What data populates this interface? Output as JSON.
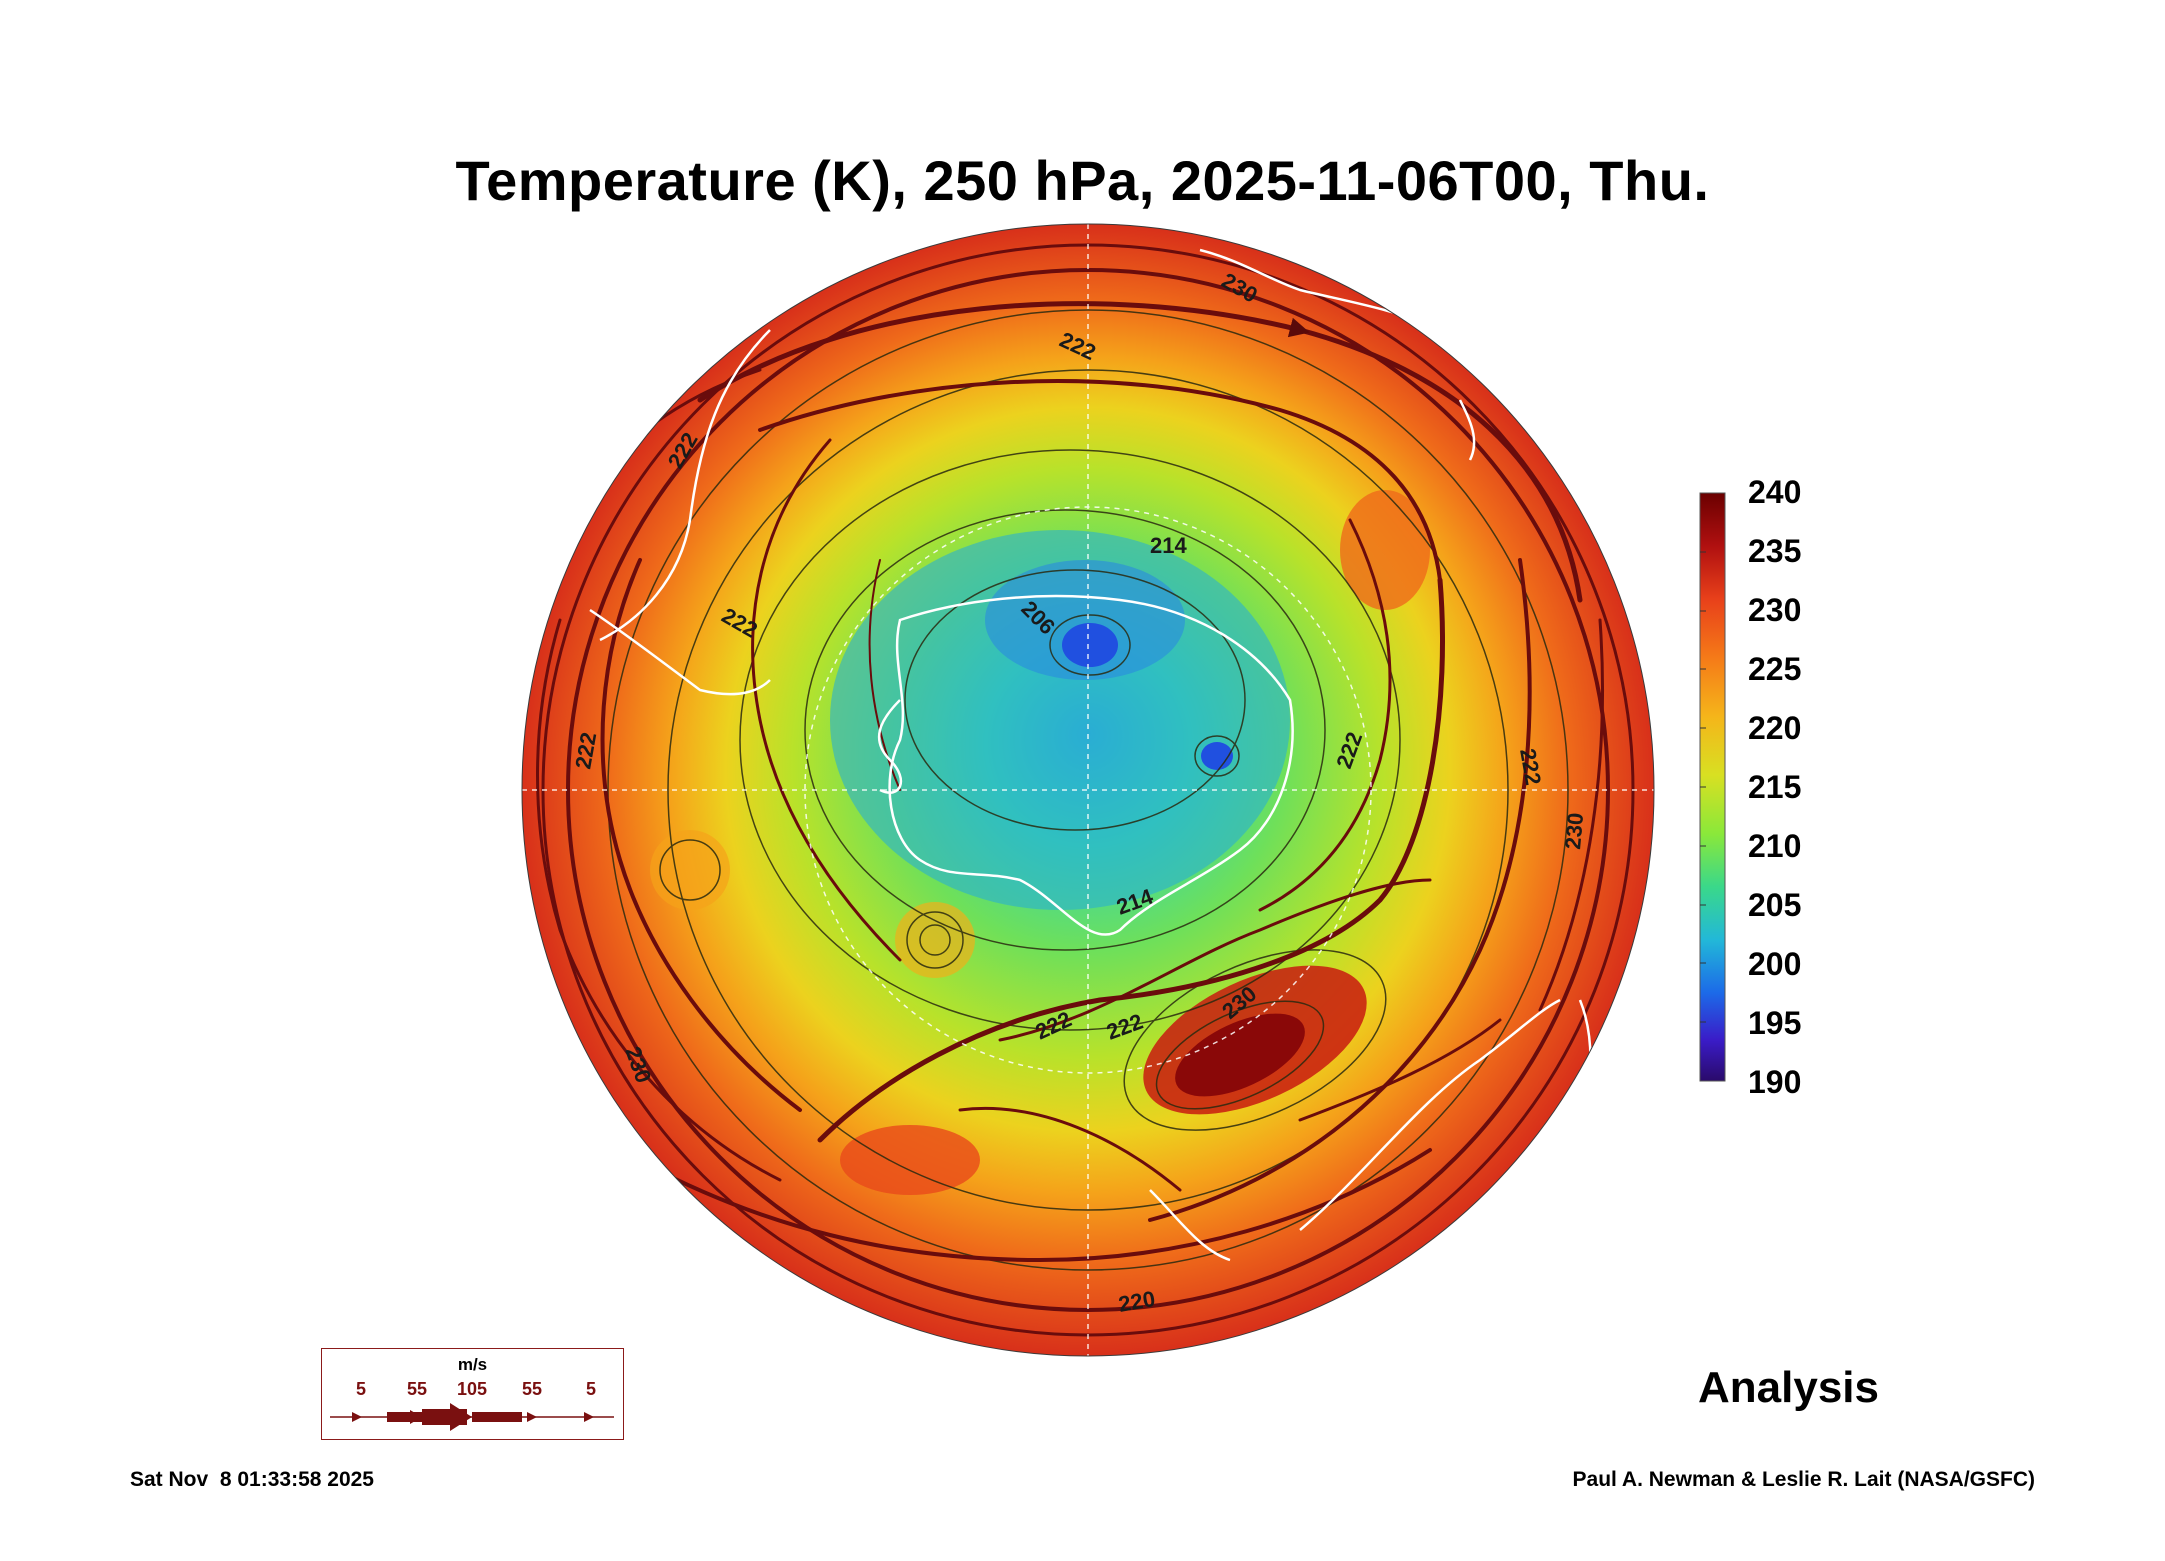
{
  "title": "Temperature (K), 250 hPa, 2025-11-06T00, Thu.",
  "colorbar": {
    "ticks": [
      "240",
      "235",
      "230",
      "225",
      "220",
      "215",
      "210",
      "205",
      "200",
      "195",
      "190"
    ],
    "stops": [
      "#6b0000",
      "#b01010",
      "#e8401a",
      "#f57a18",
      "#f5b51a",
      "#d8e022",
      "#8ae83a",
      "#3ad88a",
      "#22b8d8",
      "#1c6ae8",
      "#3a1cc8",
      "#2a0a6a"
    ]
  },
  "contour_labels": [
    "222",
    "214",
    "206",
    "222",
    "222",
    "230",
    "222",
    "222",
    "230",
    "214",
    "222",
    "222",
    "230",
    "222",
    "230",
    "220"
  ],
  "wind_legend": {
    "unit": "m/s",
    "values": [
      "5",
      "55",
      "105",
      "55",
      "5"
    ]
  },
  "analysis_label": "Analysis",
  "timestamp": "Sat Nov  8 01:33:58 2025",
  "credit": "Paul A. Newman & Leslie R. Lait (NASA/GSFC)"
}
